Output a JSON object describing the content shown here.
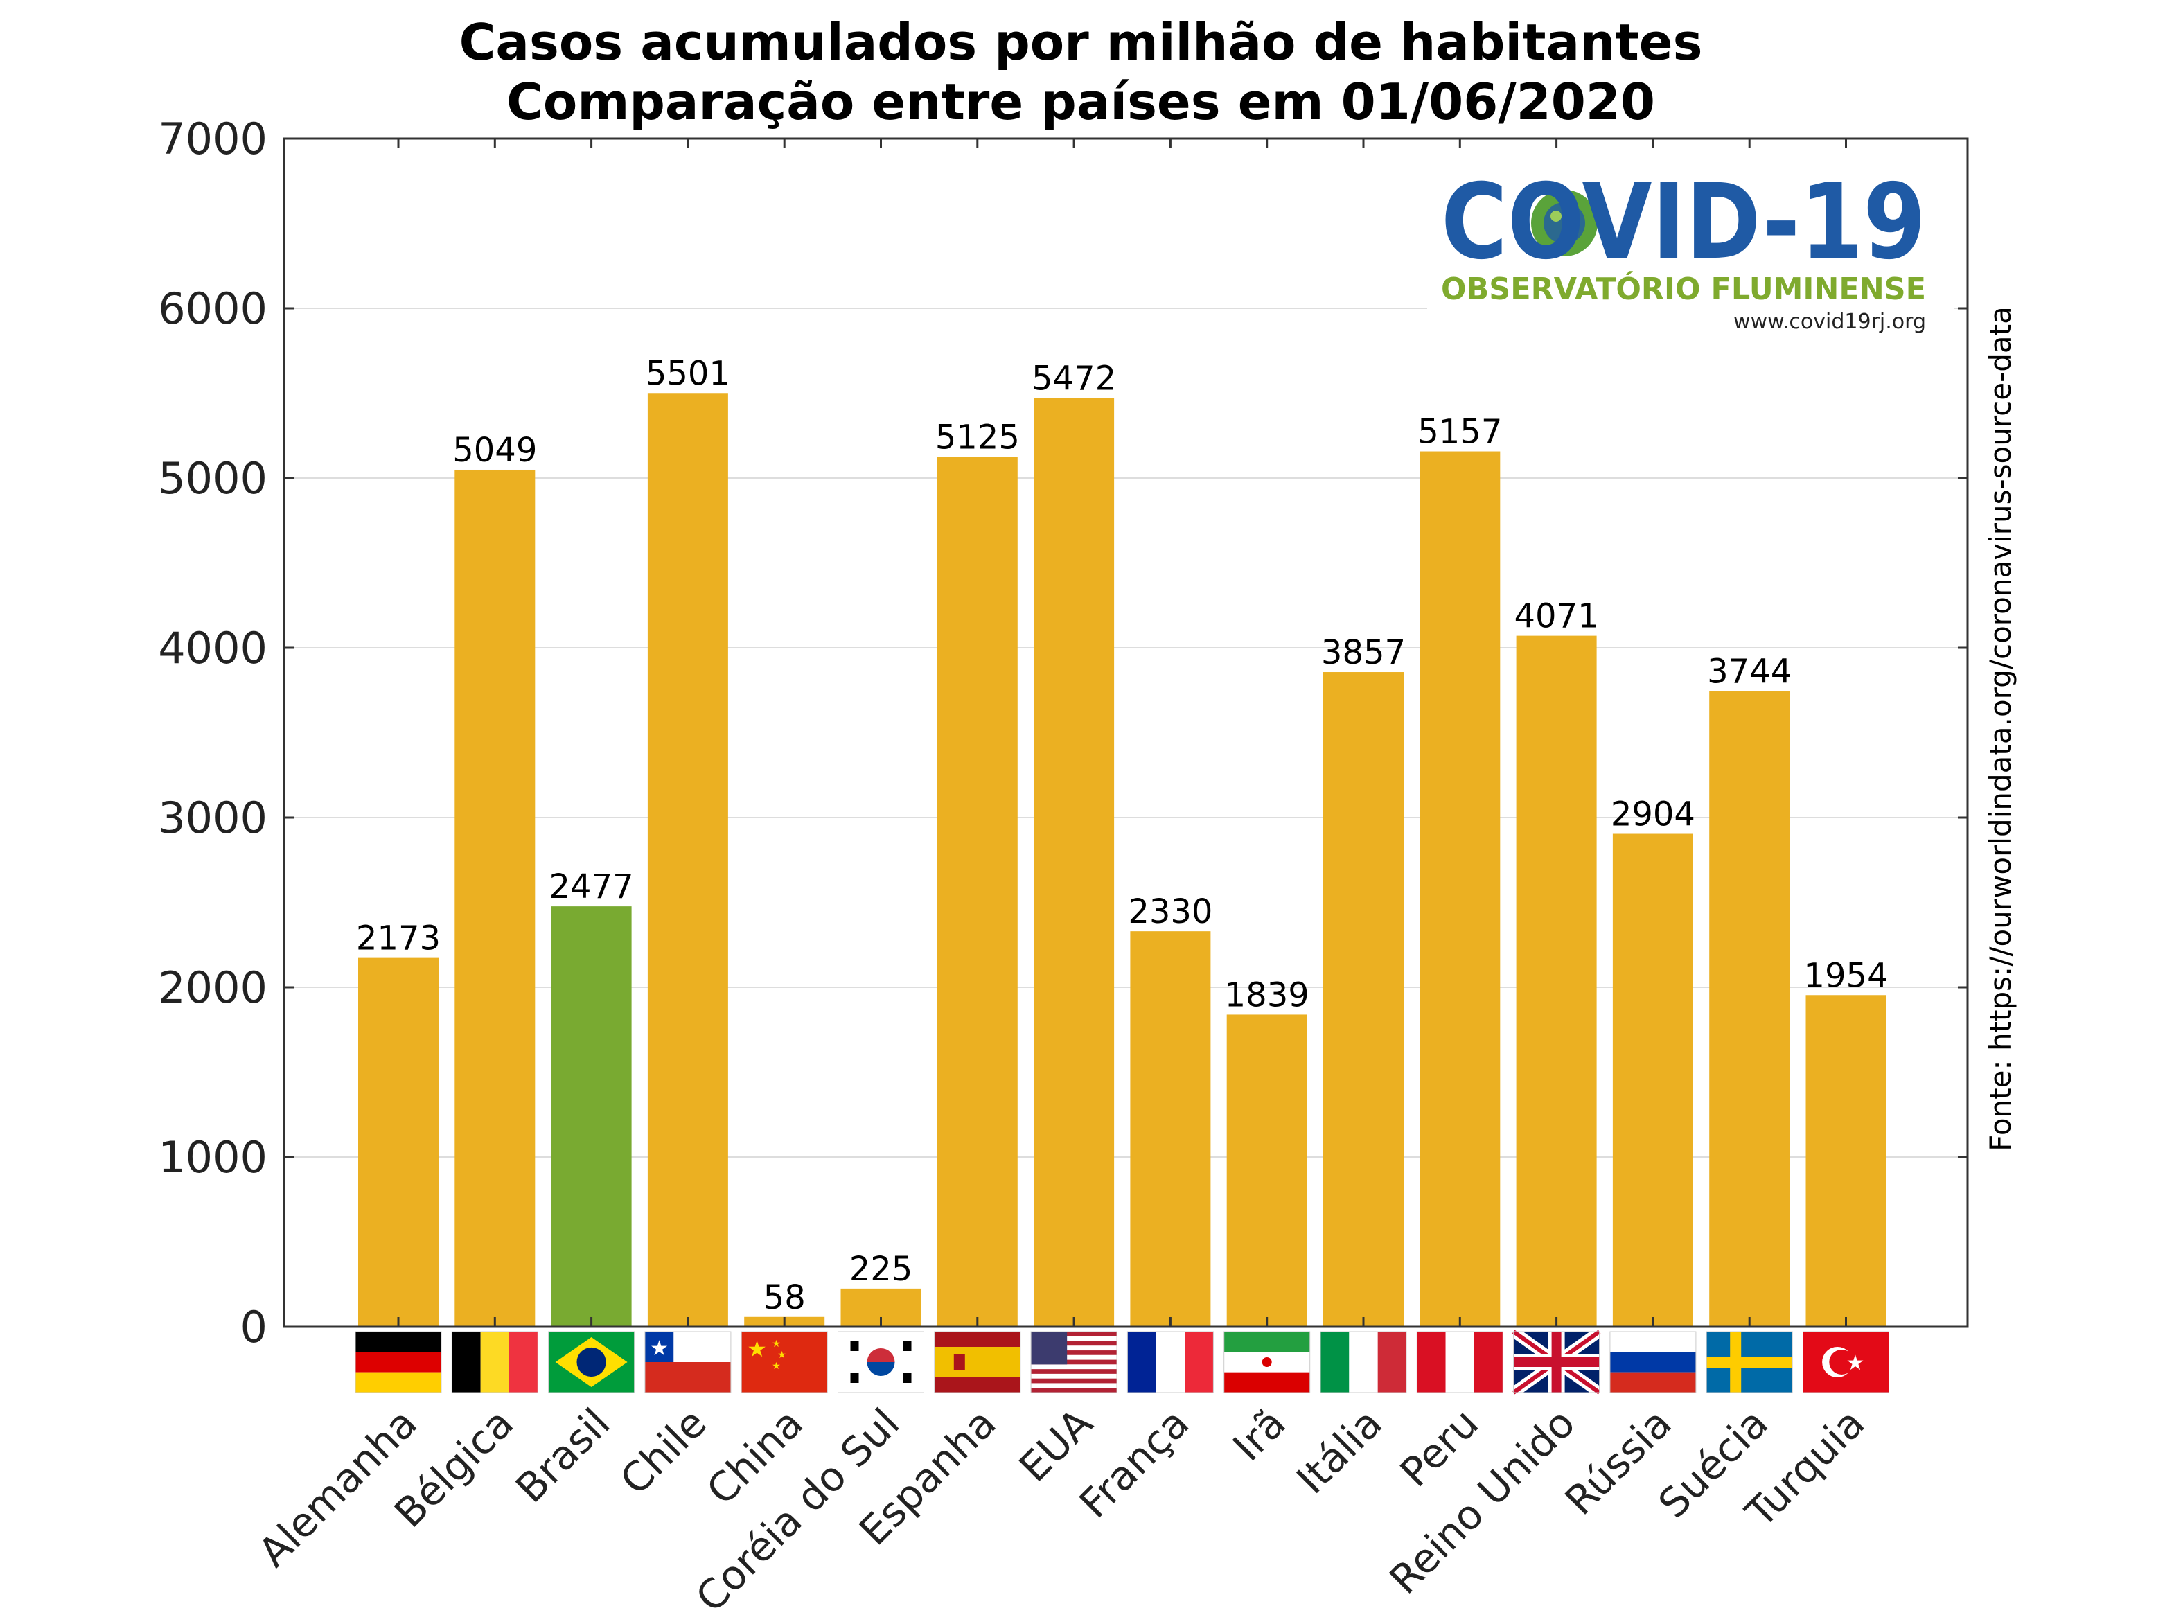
{
  "chart_data": {
    "type": "bar",
    "title": "Casos acumulados por milhão de habitantes",
    "subtitle": "Comparação entre países em 01/06/2020",
    "categories": [
      "Alemanha",
      "Bélgica",
      "Brasil",
      "Chile",
      "China",
      "Coréia do Sul",
      "Espanha",
      "EUA",
      "França",
      "Irã",
      "Itália",
      "Peru",
      "Reino Unido",
      "Rússia",
      "Suécia",
      "Turquia"
    ],
    "values": [
      2173,
      5049,
      2477,
      5501,
      58,
      225,
      5125,
      5472,
      2330,
      1839,
      3857,
      5157,
      4071,
      2904,
      3744,
      1954
    ],
    "highlight_category": "Brasil",
    "ylim": [
      0,
      7000
    ],
    "yticks": [
      0,
      1000,
      2000,
      3000,
      4000,
      5000,
      6000,
      7000
    ],
    "grid": true,
    "colors": {
      "bar": "#ebb022",
      "highlight": "#79aa31"
    },
    "source_note": "Fonte: https://ourworldindata.org/coronavirus-source-data"
  },
  "logo": {
    "name": "COVID-19",
    "subtitle": "OBSERVATÓRIO FLUMINENSE",
    "url": "www.covid19rj.org",
    "colors": {
      "main": "#1f5aa5",
      "sub": "#7faa2e"
    }
  },
  "flags": [
    "germany-flag",
    "belgium-flag",
    "brazil-flag",
    "chile-flag",
    "china-flag",
    "south-korea-flag",
    "spain-flag",
    "usa-flag",
    "france-flag",
    "iran-flag",
    "italy-flag",
    "peru-flag",
    "uk-flag",
    "russia-flag",
    "sweden-flag",
    "turkey-flag"
  ]
}
